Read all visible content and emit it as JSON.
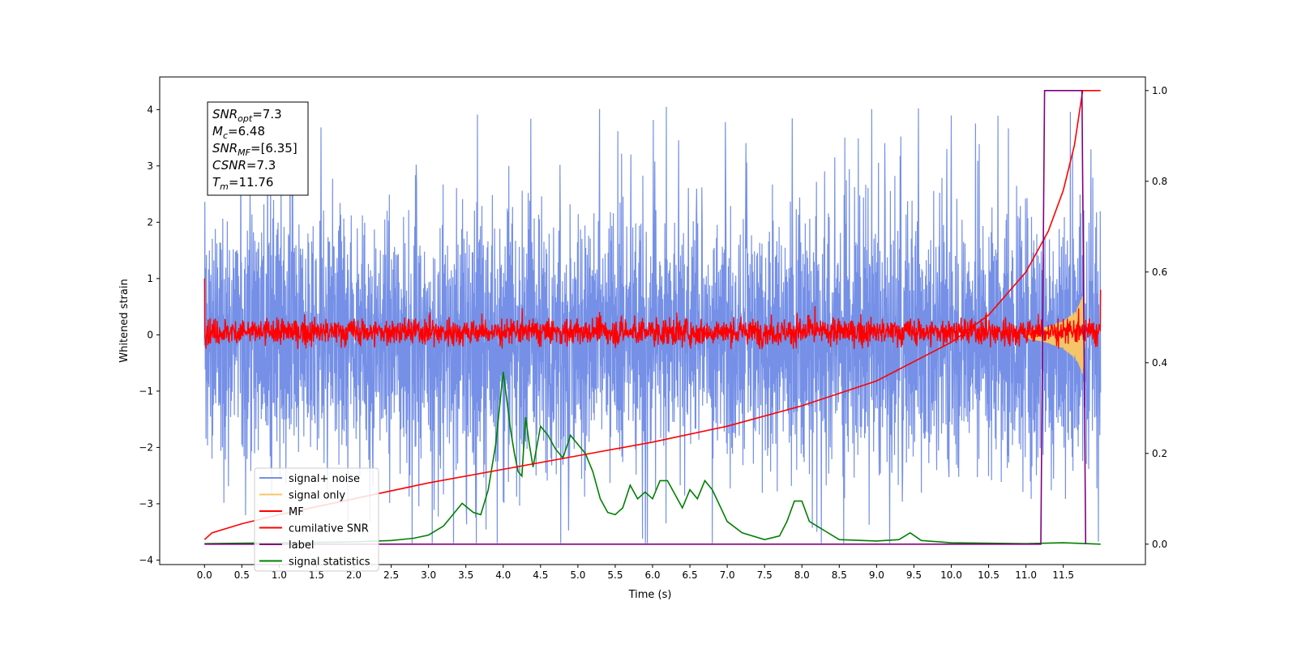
{
  "chart_data": {
    "type": "line",
    "xlabel": "Time (s)",
    "ylabel": "Whitened strain",
    "ylabel_right": "",
    "xlim": [
      -0.6,
      12.6
    ],
    "ylim": [
      -4.08,
      4.58
    ],
    "ylim_right": [
      -0.045,
      1.03
    ],
    "x_ticks": [
      "0.0",
      "0.5",
      "1.0",
      "1.5",
      "2.0",
      "2.5",
      "3.0",
      "3.5",
      "4.0",
      "4.5",
      "5.0",
      "5.5",
      "6.0",
      "6.5",
      "7.0",
      "7.5",
      "8.0",
      "8.5",
      "9.0",
      "9.5",
      "10.0",
      "10.5",
      "11.0",
      "11.5"
    ],
    "y_ticks": [
      "4",
      "3",
      "2",
      "1",
      "0",
      "−1",
      "−2",
      "−3",
      "−4"
    ],
    "y_ticks_right": [
      "1.0",
      "0.8",
      "0.6",
      "0.4",
      "0.2",
      "0.0"
    ],
    "grid": false,
    "legend_position": "lower-left",
    "duration": 12.0,
    "colors": {
      "noise": "#7590e6",
      "signal": "#f5c56a",
      "mf": "#ff0000",
      "csnr": "#ff0000",
      "label": "#800080",
      "stats": "#008000"
    },
    "legend": [
      {
        "name": "signal+ noise",
        "color": "#7590e6"
      },
      {
        "name": "signal only",
        "color": "#f5c56a"
      },
      {
        "name": "MF",
        "color": "#ff0000"
      },
      {
        "name": "cumilative SNR",
        "color": "#ff0000"
      },
      {
        "name": "label",
        "color": "#800080"
      },
      {
        "name": "signal statistics",
        "color": "#008000"
      }
    ],
    "info_box": [
      {
        "base": "SNR",
        "sub": "opt",
        "rest": "=7.3"
      },
      {
        "base": "M",
        "sub": "c",
        "rest": "=6.48"
      },
      {
        "base": "SNR",
        "sub": "MF",
        "rest": "=[6.35]"
      },
      {
        "base": "CSNR",
        "sub": "",
        "rest": "=7.3"
      },
      {
        "base": "T",
        "sub": "m",
        "rest": "=11.76"
      }
    ],
    "series": [
      {
        "name": "signal+ noise",
        "description_values": "dense noise band, typical range ±2.5, peaks up to ±4.2",
        "y_range": [
          -3.7,
          4.2
        ]
      },
      {
        "name": "signal only",
        "x": [
          11.0,
          11.3,
          11.5,
          11.6,
          11.7,
          11.76,
          11.8
        ],
        "amplitude": [
          0.05,
          0.15,
          0.25,
          0.35,
          0.5,
          0.7,
          0.0
        ]
      },
      {
        "name": "MF",
        "y_center": 0.05,
        "y_range": [
          -0.25,
          0.55
        ]
      },
      {
        "name": "cumilative SNR",
        "axis": "right",
        "x": [
          0.0,
          0.1,
          0.5,
          1.0,
          2.0,
          3.0,
          4.0,
          5.0,
          6.0,
          7.0,
          8.0,
          9.0,
          10.0,
          10.5,
          11.0,
          11.3,
          11.5,
          11.65,
          11.76,
          12.0
        ],
        "y": [
          0.01,
          0.025,
          0.045,
          0.065,
          0.1,
          0.135,
          0.165,
          0.195,
          0.225,
          0.26,
          0.305,
          0.36,
          0.445,
          0.505,
          0.6,
          0.69,
          0.78,
          0.88,
          1.0,
          1.0
        ]
      },
      {
        "name": "label",
        "axis": "right",
        "x": [
          0.0,
          11.2,
          11.25,
          11.75,
          11.8
        ],
        "y": [
          0.0,
          0.0,
          1.0,
          1.0,
          0.0
        ]
      },
      {
        "name": "signal statistics",
        "axis": "right",
        "x": [
          0.0,
          1.0,
          2.0,
          2.5,
          2.8,
          3.0,
          3.2,
          3.3,
          3.45,
          3.6,
          3.7,
          3.8,
          3.9,
          4.0,
          4.1,
          4.15,
          4.2,
          4.25,
          4.3,
          4.35,
          4.4,
          4.5,
          4.6,
          4.7,
          4.8,
          4.9,
          5.0,
          5.1,
          5.2,
          5.3,
          5.4,
          5.5,
          5.6,
          5.7,
          5.8,
          5.9,
          6.0,
          6.1,
          6.2,
          6.3,
          6.4,
          6.5,
          6.6,
          6.7,
          6.8,
          7.0,
          7.2,
          7.5,
          7.7,
          7.8,
          7.9,
          8.0,
          8.1,
          8.3,
          8.5,
          9.0,
          9.3,
          9.45,
          9.6,
          10.0,
          11.0,
          11.5,
          12.0
        ],
        "y": [
          0.001,
          0.003,
          0.005,
          0.008,
          0.013,
          0.02,
          0.04,
          0.06,
          0.09,
          0.07,
          0.065,
          0.12,
          0.22,
          0.38,
          0.25,
          0.2,
          0.16,
          0.15,
          0.28,
          0.22,
          0.17,
          0.26,
          0.24,
          0.21,
          0.19,
          0.24,
          0.22,
          0.2,
          0.16,
          0.1,
          0.07,
          0.065,
          0.08,
          0.13,
          0.1,
          0.115,
          0.1,
          0.14,
          0.14,
          0.11,
          0.08,
          0.12,
          0.1,
          0.14,
          0.12,
          0.05,
          0.025,
          0.01,
          0.018,
          0.05,
          0.095,
          0.095,
          0.05,
          0.03,
          0.01,
          0.007,
          0.01,
          0.025,
          0.008,
          0.003,
          0.001,
          0.003,
          0.0
        ]
      }
    ]
  }
}
